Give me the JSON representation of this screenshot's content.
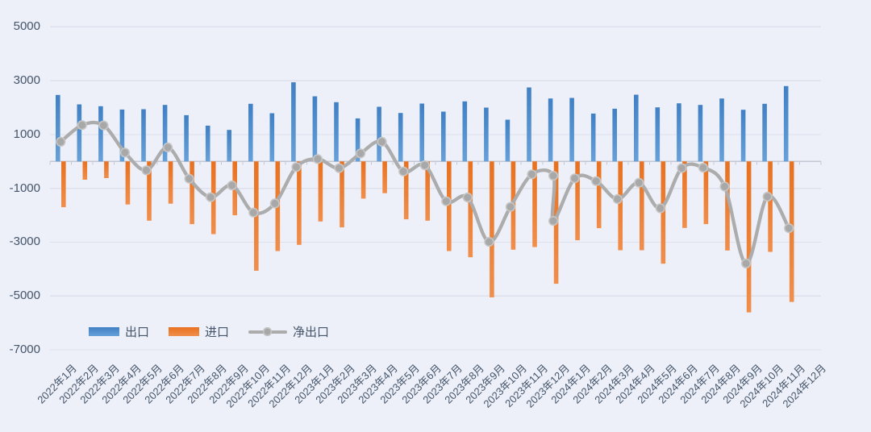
{
  "chart_data": {
    "type": "bar",
    "subtype": "clustered-bar-with-line-combo",
    "title": "",
    "categories": [
      "2022年1月",
      "2022年2月",
      "2022年3月",
      "2022年4月",
      "2022年5月",
      "2022年6月",
      "2022年7月",
      "2022年8月",
      "2022年9月",
      "2022年10月",
      "2022年11月",
      "2022年12月",
      "2023年1月",
      "2023年2月",
      "2023年3月",
      "2023年4月",
      "2023年5月",
      "2023年6月",
      "2023年7月",
      "2023年8月",
      "2023年9月",
      "2023年10月",
      "2023年11月",
      "2023年12月",
      "2024年1月",
      "2024年2月",
      "2024年3月",
      "2024年4月",
      "2024年5月",
      "2024年6月",
      "2024年7月",
      "2024年8月",
      "2024年9月",
      "2024年10月",
      "2024年11月",
      "2024年12月"
    ],
    "series": [
      {
        "name": "出口",
        "type": "bar",
        "color_top": "#4080c4",
        "color_bottom": "#66a0d8",
        "values": [
          2470,
          2120,
          2050,
          1930,
          1940,
          2100,
          1720,
          1330,
          1170,
          2140,
          1790,
          2940,
          2420,
          2200,
          1600,
          2030,
          1800,
          2150,
          1850,
          2230,
          2000,
          1550,
          2750,
          2340,
          2360,
          1780,
          1960,
          2480,
          2010,
          2160,
          2100,
          2340,
          1920,
          2140,
          2800,
          null
        ]
      },
      {
        "name": "进口",
        "type": "bar",
        "color_top": "#e8711f",
        "color_bottom": "#f08e4c",
        "values": [
          -1700,
          -680,
          -620,
          -1600,
          -2200,
          -1570,
          -2330,
          -2700,
          -2000,
          -4060,
          -3330,
          -3100,
          -2230,
          -2450,
          -1380,
          -1180,
          -2150,
          -2200,
          -3330,
          -3560,
          -5050,
          -3280,
          -3180,
          -4545,
          -2930,
          -2480,
          -3300,
          -3300,
          -3800,
          -2470,
          -2330,
          -3310,
          -5610,
          -3360,
          -5220,
          null
        ]
      },
      {
        "name": "净出口",
        "type": "line",
        "color": "#acacac",
        "marker_fill": "#a8a8a8",
        "marker_ring": "#c6c6c6",
        "note": "two markers plotted at 2023年12月 (vertical drop)",
        "points": [
          {
            "i": 0,
            "v": 730
          },
          {
            "i": 1,
            "v": 1350
          },
          {
            "i": 2,
            "v": 1340
          },
          {
            "i": 3,
            "v": 330
          },
          {
            "i": 4,
            "v": -330
          },
          {
            "i": 5,
            "v": 520
          },
          {
            "i": 6,
            "v": -640
          },
          {
            "i": 7,
            "v": -1330
          },
          {
            "i": 8,
            "v": -890
          },
          {
            "i": 9,
            "v": -1900
          },
          {
            "i": 10,
            "v": -1560
          },
          {
            "i": 11,
            "v": -210
          },
          {
            "i": 12,
            "v": 90
          },
          {
            "i": 13,
            "v": -250
          },
          {
            "i": 14,
            "v": 300
          },
          {
            "i": 15,
            "v": 730
          },
          {
            "i": 16,
            "v": -370
          },
          {
            "i": 17,
            "v": -140
          },
          {
            "i": 18,
            "v": -1480
          },
          {
            "i": 19,
            "v": -1340
          },
          {
            "i": 20,
            "v": -2990
          },
          {
            "i": 21,
            "v": -1690
          },
          {
            "i": 22,
            "v": -480
          },
          {
            "i": 23,
            "v": -530
          },
          {
            "i": 23,
            "v": -2210
          },
          {
            "i": 24,
            "v": -630
          },
          {
            "i": 25,
            "v": -730
          },
          {
            "i": 26,
            "v": -1400
          },
          {
            "i": 27,
            "v": -790
          },
          {
            "i": 28,
            "v": -1740
          },
          {
            "i": 29,
            "v": -250
          },
          {
            "i": 30,
            "v": -230
          },
          {
            "i": 31,
            "v": -930
          },
          {
            "i": 32,
            "v": -3790
          },
          {
            "i": 33,
            "v": -1310
          },
          {
            "i": 34,
            "v": -2480
          }
        ]
      }
    ],
    "y_axis": {
      "ticks": [
        5000,
        3000,
        1000,
        -1000,
        -3000,
        -5000,
        -7000
      ],
      "min": -7000,
      "max": 5000
    },
    "x_axis": {
      "label_rotation_deg": -45
    },
    "grid": true,
    "legend_position": "bottom-left-inside",
    "colors": {
      "background": "#edf0f8",
      "gridline": "#dde1eb",
      "zero_axis": "#c3c8d4",
      "axis_text": "#44546a"
    }
  },
  "legend": {
    "export_label": "出口",
    "import_label": "进口",
    "net_label": "净出口"
  }
}
